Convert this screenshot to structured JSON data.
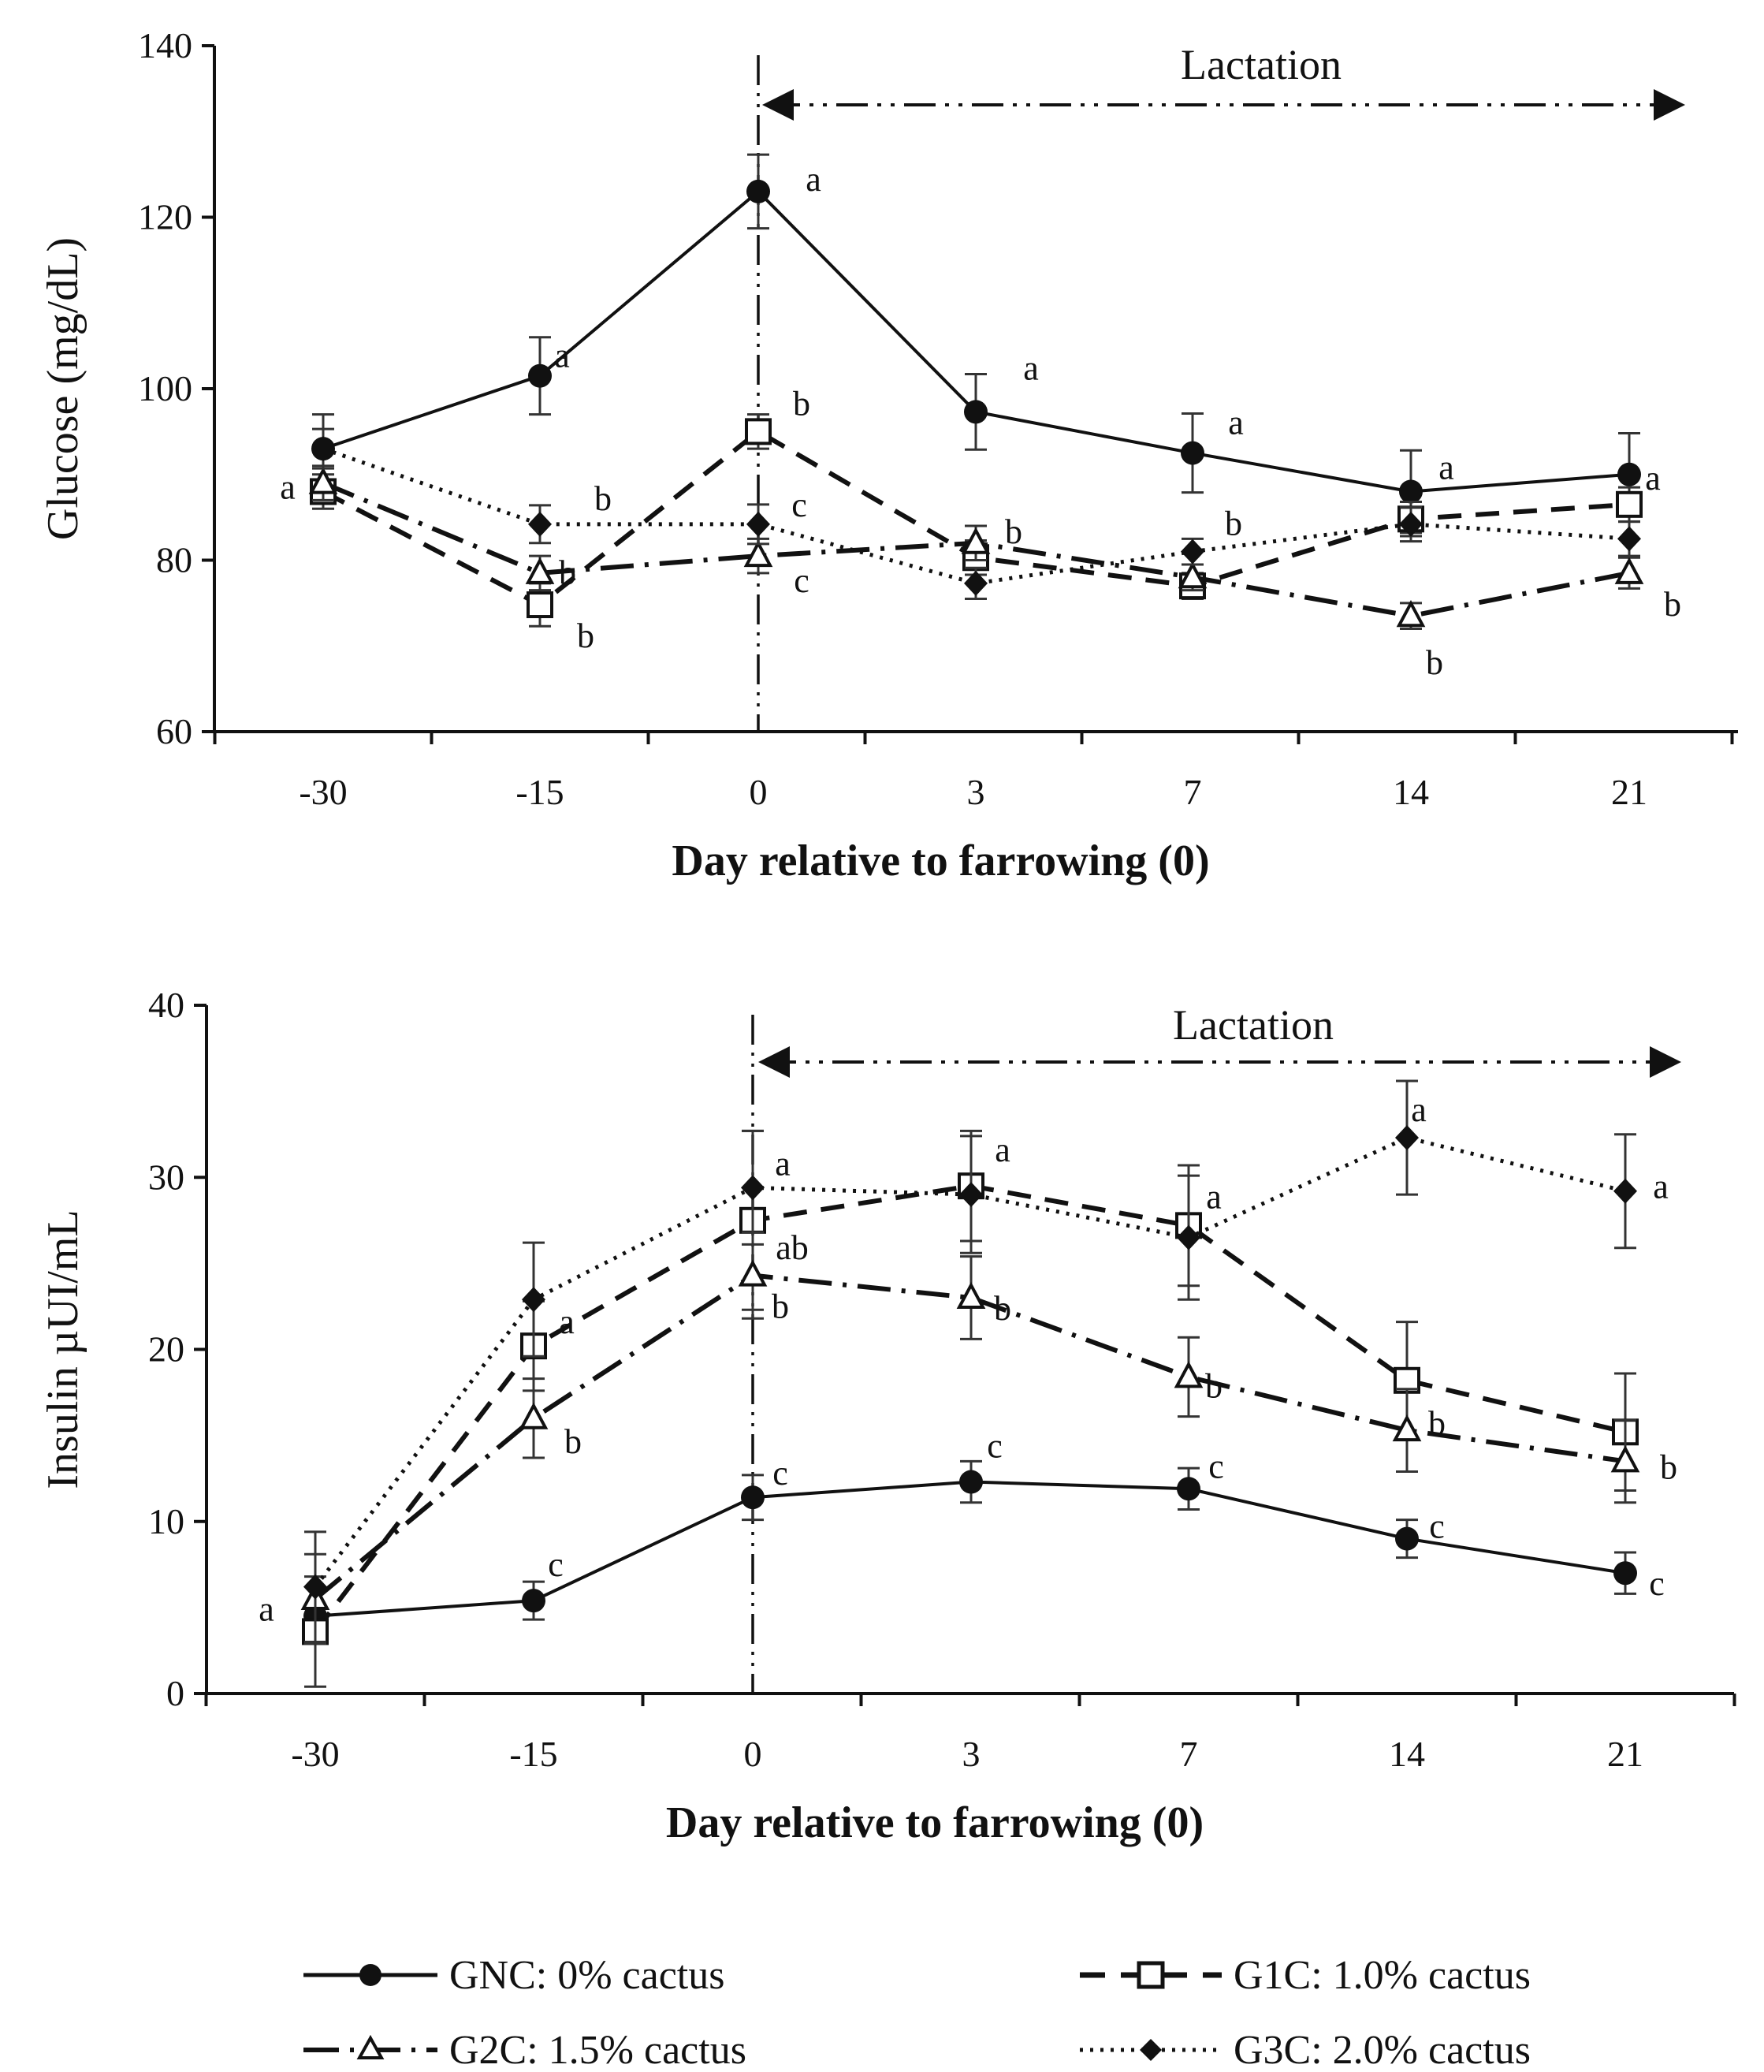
{
  "chart_data": [
    {
      "id": "glucose",
      "type": "line",
      "categories": [
        "-30",
        "-15",
        "0",
        "3",
        "7",
        "14",
        "21"
      ],
      "ylabel": "Glucose (mg/dL)",
      "xlabel": "Day relative to farrowing (0)",
      "ylim": [
        60,
        140
      ],
      "yticks": [
        "60",
        "80",
        "100",
        "120",
        "140"
      ],
      "annotation": "Lactation",
      "series": [
        {
          "key": "GNC",
          "values": [
            93,
            101.5,
            123,
            97.3,
            92.5,
            88,
            90
          ],
          "err": [
            4,
            4.5,
            4.3,
            4.4,
            4.6,
            4.8,
            4.8
          ],
          "sig": [
            "",
            "a",
            "a",
            "a",
            "a",
            "a",
            "a"
          ]
        },
        {
          "key": "G1C",
          "values": [
            88,
            74.8,
            95,
            80.3,
            77,
            84.8,
            86.5
          ],
          "err": [
            2,
            2.5,
            2,
            2,
            1.5,
            2,
            2
          ],
          "sig": [
            "a",
            "b",
            "b",
            "",
            "",
            "",
            ""
          ]
        },
        {
          "key": "G2C",
          "values": [
            89,
            78.5,
            80.5,
            82,
            78,
            73.5,
            78.5
          ],
          "err": [
            2,
            2,
            2,
            2,
            1.5,
            1.5,
            1.8
          ],
          "sig": [
            "",
            "b",
            "c",
            "b",
            "",
            "b",
            "b"
          ]
        },
        {
          "key": "G3C",
          "values": [
            93,
            84.2,
            84.2,
            77.3,
            81,
            84.2,
            82.5
          ],
          "err": [
            2.3,
            2.2,
            2.3,
            1.8,
            1.5,
            2,
            2
          ],
          "sig": [
            "",
            "b",
            "c",
            "",
            "b",
            "",
            ""
          ]
        }
      ]
    },
    {
      "id": "insulin",
      "type": "line",
      "categories": [
        "-30",
        "-15",
        "0",
        "3",
        "7",
        "14",
        "21"
      ],
      "ylabel": "Insulin µUI/mL",
      "xlabel": "Day relative to farrowing (0)",
      "ylim": [
        0,
        40
      ],
      "yticks": [
        "0",
        "10",
        "20",
        "30",
        "40"
      ],
      "annotation": "Lactation",
      "series": [
        {
          "key": "GNC",
          "values": [
            4.5,
            5.4,
            11.4,
            12.3,
            11.9,
            9,
            7
          ],
          "err": [
            0.6,
            1.1,
            1.3,
            1.2,
            1.2,
            1.1,
            1.2
          ],
          "sig": [
            "",
            "c",
            "c",
            "c",
            "c",
            "c",
            "c"
          ]
        },
        {
          "key": "G1C",
          "values": [
            3.6,
            20.2,
            27.5,
            29.5,
            27.2,
            18.2,
            15.2
          ],
          "err": [
            3.2,
            2.6,
            5.2,
            3.2,
            3.5,
            3.4,
            3.4
          ],
          "sig": [
            "a",
            "a",
            "ab",
            "a",
            "a",
            "b",
            ""
          ]
        },
        {
          "key": "G2C",
          "values": [
            5.5,
            16,
            24.3,
            23,
            18.4,
            15.3,
            13.5
          ],
          "err": [
            2.6,
            2.3,
            2.5,
            2.4,
            2.3,
            2.4,
            2.4
          ],
          "sig": [
            "",
            "b",
            "b",
            "b",
            "b",
            "",
            "b"
          ]
        },
        {
          "key": "G3C",
          "values": [
            6.2,
            22.9,
            29.4,
            29,
            26.5,
            32.3,
            29.2
          ],
          "err": [
            3.2,
            3.3,
            3.3,
            3.4,
            3.6,
            3.3,
            3.3
          ],
          "sig": [
            "",
            "",
            "a",
            "",
            "",
            "a",
            "a"
          ]
        }
      ]
    }
  ],
  "legend": [
    {
      "key": "GNC",
      "label": "GNC: 0% cactus"
    },
    {
      "key": "G1C",
      "label": "G1C: 1.0% cactus"
    },
    {
      "key": "G2C",
      "label": "G2C: 1.5% cactus"
    },
    {
      "key": "G3C",
      "label": "G3C: 2.0% cactus"
    }
  ]
}
